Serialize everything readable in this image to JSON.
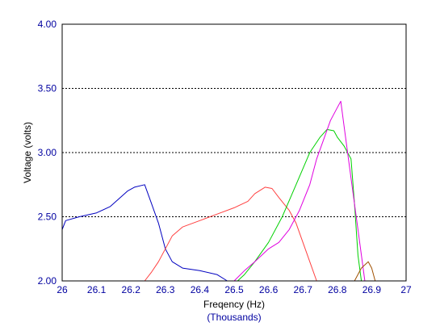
{
  "chart_data": {
    "type": "line",
    "xlabel": "Freqency (Hz)",
    "xunit": "(Thousands)",
    "ylabel": "Voltage (volts)",
    "xlim": [
      26,
      27
    ],
    "ylim": [
      2.0,
      4.0
    ],
    "xticks": [
      "26",
      "26.1",
      "26.2",
      "26.3",
      "26.4",
      "26.5",
      "26.6",
      "26.7",
      "26.8",
      "26.9",
      "27"
    ],
    "yticks": [
      "2.00",
      "2.50",
      "3.00",
      "3.50",
      "4.00"
    ],
    "grid": "horizontal-dashed",
    "series": [
      {
        "color": "#0000c0",
        "points": [
          [
            26.0,
            2.4
          ],
          [
            26.01,
            2.47
          ],
          [
            26.05,
            2.5
          ],
          [
            26.1,
            2.53
          ],
          [
            26.14,
            2.58
          ],
          [
            26.19,
            2.7
          ],
          [
            26.21,
            2.73
          ],
          [
            26.24,
            2.75
          ],
          [
            26.26,
            2.6
          ],
          [
            26.28,
            2.45
          ],
          [
            26.3,
            2.25
          ],
          [
            26.32,
            2.15
          ],
          [
            26.35,
            2.1
          ],
          [
            26.4,
            2.08
          ],
          [
            26.45,
            2.05
          ],
          [
            26.48,
            2.0
          ]
        ]
      },
      {
        "color": "#ff4040",
        "points": [
          [
            26.24,
            2.0
          ],
          [
            26.26,
            2.07
          ],
          [
            26.28,
            2.15
          ],
          [
            26.3,
            2.25
          ],
          [
            26.32,
            2.35
          ],
          [
            26.35,
            2.42
          ],
          [
            26.4,
            2.47
          ],
          [
            26.45,
            2.52
          ],
          [
            26.5,
            2.57
          ],
          [
            26.54,
            2.62
          ],
          [
            26.56,
            2.68
          ],
          [
            26.59,
            2.73
          ],
          [
            26.61,
            2.72
          ],
          [
            26.63,
            2.65
          ],
          [
            26.66,
            2.55
          ],
          [
            26.68,
            2.45
          ],
          [
            26.7,
            2.3
          ],
          [
            26.72,
            2.15
          ],
          [
            26.74,
            2.0
          ]
        ]
      },
      {
        "color": "#00d000",
        "points": [
          [
            26.51,
            2.0
          ],
          [
            26.53,
            2.05
          ],
          [
            26.56,
            2.15
          ],
          [
            26.6,
            2.3
          ],
          [
            26.64,
            2.5
          ],
          [
            26.68,
            2.75
          ],
          [
            26.72,
            3.0
          ],
          [
            26.75,
            3.12
          ],
          [
            26.77,
            3.18
          ],
          [
            26.79,
            3.17
          ],
          [
            26.8,
            3.12
          ],
          [
            26.82,
            3.05
          ],
          [
            26.84,
            2.95
          ],
          [
            26.85,
            2.6
          ],
          [
            26.86,
            2.2
          ],
          [
            26.87,
            2.0
          ]
        ]
      },
      {
        "color": "#e000e0",
        "points": [
          [
            26.5,
            2.0
          ],
          [
            26.53,
            2.08
          ],
          [
            26.56,
            2.15
          ],
          [
            26.6,
            2.25
          ],
          [
            26.63,
            2.3
          ],
          [
            26.66,
            2.4
          ],
          [
            26.69,
            2.55
          ],
          [
            26.72,
            2.75
          ],
          [
            26.74,
            2.95
          ],
          [
            26.76,
            3.1
          ],
          [
            26.78,
            3.25
          ],
          [
            26.8,
            3.35
          ],
          [
            26.81,
            3.4
          ],
          [
            26.82,
            3.2
          ],
          [
            26.84,
            2.8
          ],
          [
            26.86,
            2.4
          ],
          [
            26.88,
            2.0
          ]
        ]
      },
      {
        "color": "#a05000",
        "points": [
          [
            26.85,
            2.0
          ],
          [
            26.87,
            2.1
          ],
          [
            26.89,
            2.15
          ],
          [
            26.9,
            2.1
          ],
          [
            26.91,
            2.0
          ]
        ]
      }
    ]
  }
}
